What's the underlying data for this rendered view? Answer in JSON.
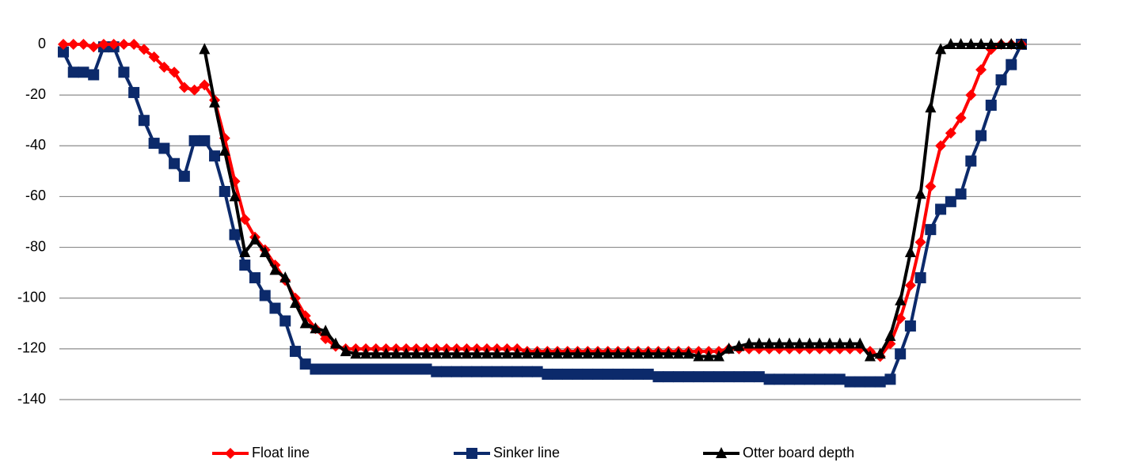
{
  "chart_data": {
    "type": "line",
    "ylim": [
      -140,
      0
    ],
    "yticks": [
      0,
      -20,
      -40,
      -60,
      -80,
      -100,
      -120,
      -140
    ],
    "grid": true,
    "legend": "bottom",
    "series": [
      {
        "name": "Float line",
        "color": "#ff0000",
        "marker": "diamond",
        "values": [
          0,
          0,
          0,
          -1,
          0,
          0,
          0,
          0,
          -2,
          -5,
          -9,
          -11,
          -17,
          -18,
          -16,
          -22,
          -37,
          -54,
          -69,
          -76,
          -81,
          -87,
          -93,
          -100,
          -107,
          -112,
          -116,
          -119,
          -120,
          -120,
          -120,
          -120,
          -120,
          -120,
          -120,
          -120,
          -120,
          -120,
          -120,
          -120,
          -120,
          -120,
          -120,
          -120,
          -120,
          -120,
          -121,
          -121,
          -121,
          -121,
          -121,
          -121,
          -121,
          -121,
          -121,
          -121,
          -121,
          -121,
          -121,
          -121,
          -121,
          -121,
          -121,
          -121,
          -121,
          -121,
          -120,
          -120,
          -120,
          -120,
          -120,
          -120,
          -120,
          -120,
          -120,
          -120,
          -120,
          -120,
          -120,
          -120,
          -121,
          -123,
          -118,
          -108,
          -95,
          -78,
          -56,
          -40,
          -35,
          -29,
          -20,
          -10,
          -2,
          0,
          0,
          0
        ]
      },
      {
        "name": "Sinker line",
        "color": "#0c2a6b",
        "marker": "square",
        "values": [
          -3,
          -11,
          -11,
          -12,
          -1,
          -1,
          -11,
          -19,
          -30,
          -39,
          -41,
          -47,
          -52,
          -38,
          -38,
          -44,
          -58,
          -75,
          -87,
          -92,
          -99,
          -104,
          -109,
          -121,
          -126,
          -128,
          -128,
          -128,
          -128,
          -128,
          -128,
          -128,
          -128,
          -128,
          -128,
          -128,
          -128,
          -129,
          -129,
          -129,
          -129,
          -129,
          -129,
          -129,
          -129,
          -129,
          -129,
          -129,
          -130,
          -130,
          -130,
          -130,
          -130,
          -130,
          -130,
          -130,
          -130,
          -130,
          -130,
          -131,
          -131,
          -131,
          -131,
          -131,
          -131,
          -131,
          -131,
          -131,
          -131,
          -131,
          -132,
          -132,
          -132,
          -132,
          -132,
          -132,
          -132,
          -132,
          -133,
          -133,
          -133,
          -133,
          -132,
          -122,
          -111,
          -92,
          -73,
          -65,
          -62,
          -59,
          -46,
          -36,
          -24,
          -14,
          -8,
          0
        ]
      },
      {
        "name": "Otter board depth",
        "color": "#000000",
        "marker": "triangle",
        "values": [
          null,
          null,
          null,
          null,
          null,
          null,
          null,
          null,
          null,
          null,
          null,
          null,
          null,
          null,
          -2,
          -23,
          -42,
          -60,
          -82,
          -77,
          -82,
          -89,
          -92,
          -102,
          -110,
          -112,
          -113,
          -118,
          -121,
          -122,
          -122,
          -122,
          -122,
          -122,
          -122,
          -122,
          -122,
          -122,
          -122,
          -122,
          -122,
          -122,
          -122,
          -122,
          -122,
          -122,
          -122,
          -122,
          -122,
          -122,
          -122,
          -122,
          -122,
          -122,
          -122,
          -122,
          -122,
          -122,
          -122,
          -122,
          -122,
          -122,
          -122,
          -123,
          -123,
          -123,
          -120,
          -119,
          -118,
          -118,
          -118,
          -118,
          -118,
          -118,
          -118,
          -118,
          -118,
          -118,
          -118,
          -118,
          -123,
          -122,
          -115,
          -101,
          -82,
          -59,
          -25,
          -2,
          0,
          0,
          0,
          0,
          0,
          0,
          0,
          0
        ]
      }
    ]
  }
}
